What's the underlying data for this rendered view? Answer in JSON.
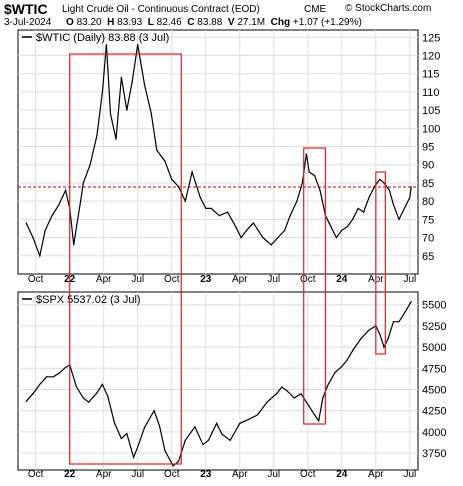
{
  "header": {
    "ticker": "$WTIC",
    "name": "Light Crude Oil - Continuous Contract (EOD)",
    "exchange": "CME",
    "brand": "© StockCharts.com",
    "date": "3-Jul-2024",
    "open_label": "O",
    "open": "83.20",
    "high_label": "H",
    "high": "83.93",
    "low_label": "L",
    "low": "82.46",
    "close_label": "C",
    "close": "83.88",
    "volume_label": "V",
    "volume": "27.1M",
    "change_label": "Chg",
    "change": "+1.07 (+1.29%)"
  },
  "colors": {
    "price_line": "#000000",
    "highlight_box": "#e02020",
    "reference_line": "#cc0000",
    "grid": "#dddddd"
  },
  "chart_data": [
    {
      "type": "line",
      "legend": "$WTIC (Daily) 83.88 (3 Jul)",
      "ylim": [
        60,
        127
      ],
      "y_ticks": [
        65,
        70,
        75,
        80,
        85,
        90,
        95,
        100,
        105,
        110,
        115,
        120,
        125
      ],
      "x_tick_labels": [
        "Oct",
        "22",
        "Apr",
        "Jul",
        "Oct",
        "23",
        "Apr",
        "Jul",
        "Oct",
        "24",
        "Apr",
        "Jul"
      ],
      "reference_line": 83.88,
      "grid": true,
      "points": [
        [
          2021.68,
          74
        ],
        [
          2021.73,
          70
        ],
        [
          2021.78,
          65
        ],
        [
          2021.82,
          72
        ],
        [
          2021.87,
          76
        ],
        [
          2021.92,
          79
        ],
        [
          2021.97,
          83
        ],
        [
          2022.0,
          78
        ],
        [
          2022.03,
          68
        ],
        [
          2022.05,
          73
        ],
        [
          2022.08,
          80
        ],
        [
          2022.1,
          85
        ],
        [
          2022.15,
          90
        ],
        [
          2022.2,
          98
        ],
        [
          2022.24,
          110
        ],
        [
          2022.27,
          123
        ],
        [
          2022.3,
          104
        ],
        [
          2022.34,
          97
        ],
        [
          2022.38,
          114
        ],
        [
          2022.42,
          105
        ],
        [
          2022.46,
          113
        ],
        [
          2022.5,
          123
        ],
        [
          2022.55,
          112
        ],
        [
          2022.6,
          104
        ],
        [
          2022.64,
          94
        ],
        [
          2022.7,
          91
        ],
        [
          2022.75,
          86
        ],
        [
          2022.8,
          84
        ],
        [
          2022.85,
          80
        ],
        [
          2022.9,
          88
        ],
        [
          2022.96,
          81
        ],
        [
          2023.0,
          78
        ],
        [
          2023.04,
          78
        ],
        [
          2023.1,
          76
        ],
        [
          2023.16,
          77
        ],
        [
          2023.22,
          73
        ],
        [
          2023.26,
          70
        ],
        [
          2023.3,
          72
        ],
        [
          2023.35,
          74
        ],
        [
          2023.42,
          70
        ],
        [
          2023.48,
          68
        ],
        [
          2023.53,
          70
        ],
        [
          2023.58,
          72
        ],
        [
          2023.62,
          76
        ],
        [
          2023.67,
          80
        ],
        [
          2023.71,
          85
        ],
        [
          2023.74,
          93
        ],
        [
          2023.76,
          88
        ],
        [
          2023.8,
          87
        ],
        [
          2023.84,
          83
        ],
        [
          2023.88,
          76
        ],
        [
          2023.92,
          73
        ],
        [
          2023.96,
          70
        ],
        [
          2024.0,
          72
        ],
        [
          2024.04,
          73
        ],
        [
          2024.08,
          75
        ],
        [
          2024.12,
          78
        ],
        [
          2024.16,
          77
        ],
        [
          2024.2,
          81
        ],
        [
          2024.24,
          84
        ],
        [
          2024.28,
          86
        ],
        [
          2024.31,
          85
        ],
        [
          2024.35,
          83
        ],
        [
          2024.38,
          79
        ],
        [
          2024.42,
          75
        ],
        [
          2024.46,
          78
        ],
        [
          2024.5,
          81
        ],
        [
          2024.51,
          83.88
        ]
      ]
    },
    {
      "type": "line",
      "legend": "$SPX 5537.02 (3 Jul)",
      "ylim": [
        3550,
        5650
      ],
      "y_ticks": [
        3750,
        4000,
        4250,
        4500,
        4750,
        5000,
        5250,
        5500
      ],
      "x_tick_labels": [
        "Oct",
        "22",
        "Apr",
        "Jul",
        "Oct",
        "23",
        "Apr",
        "Jul",
        "Oct",
        "24",
        "Apr",
        "Jul"
      ],
      "grid": true,
      "points": [
        [
          2021.68,
          4360
        ],
        [
          2021.73,
          4450
        ],
        [
          2021.78,
          4560
        ],
        [
          2021.83,
          4650
        ],
        [
          2021.88,
          4650
        ],
        [
          2021.92,
          4690
        ],
        [
          2021.97,
          4760
        ],
        [
          2022.0,
          4790
        ],
        [
          2022.05,
          4530
        ],
        [
          2022.1,
          4400
        ],
        [
          2022.14,
          4350
        ],
        [
          2022.2,
          4460
        ],
        [
          2022.24,
          4560
        ],
        [
          2022.28,
          4420
        ],
        [
          2022.33,
          4100
        ],
        [
          2022.38,
          3920
        ],
        [
          2022.42,
          3980
        ],
        [
          2022.47,
          3700
        ],
        [
          2022.5,
          3820
        ],
        [
          2022.55,
          4050
        ],
        [
          2022.62,
          4250
        ],
        [
          2022.66,
          4070
        ],
        [
          2022.7,
          3780
        ],
        [
          2022.76,
          3600
        ],
        [
          2022.8,
          3650
        ],
        [
          2022.85,
          3900
        ],
        [
          2022.92,
          4060
        ],
        [
          2022.98,
          3850
        ],
        [
          2023.02,
          3900
        ],
        [
          2023.08,
          4100
        ],
        [
          2023.12,
          3970
        ],
        [
          2023.18,
          3900
        ],
        [
          2023.25,
          4100
        ],
        [
          2023.32,
          4150
        ],
        [
          2023.38,
          4200
        ],
        [
          2023.45,
          4350
        ],
        [
          2023.52,
          4450
        ],
        [
          2023.56,
          4530
        ],
        [
          2023.6,
          4480
        ],
        [
          2023.65,
          4400
        ],
        [
          2023.7,
          4450
        ],
        [
          2023.76,
          4300
        ],
        [
          2023.8,
          4200
        ],
        [
          2023.83,
          4130
        ],
        [
          2023.86,
          4400
        ],
        [
          2023.9,
          4560
        ],
        [
          2023.95,
          4700
        ],
        [
          2024.0,
          4770
        ],
        [
          2024.04,
          4850
        ],
        [
          2024.08,
          4960
        ],
        [
          2024.14,
          5100
        ],
        [
          2024.2,
          5200
        ],
        [
          2024.25,
          5250
        ],
        [
          2024.28,
          5150
        ],
        [
          2024.31,
          5000
        ],
        [
          2024.34,
          5100
        ],
        [
          2024.38,
          5300
        ],
        [
          2024.42,
          5300
        ],
        [
          2024.46,
          5400
        ],
        [
          2024.5,
          5510
        ],
        [
          2024.51,
          5537
        ]
      ]
    }
  ]
}
